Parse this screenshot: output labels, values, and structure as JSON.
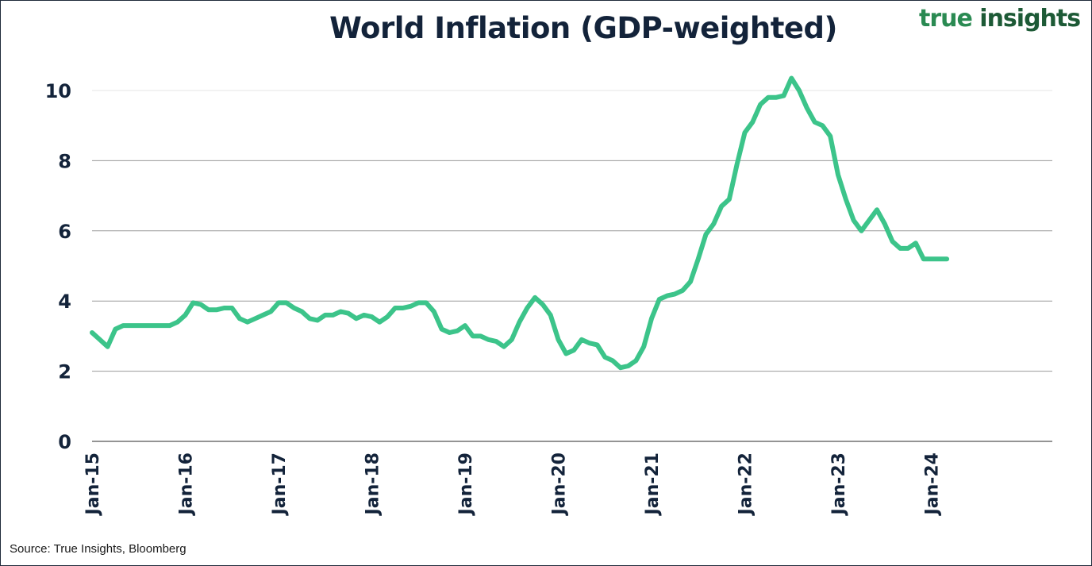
{
  "logo": {
    "part1": "true",
    "part2": " insights"
  },
  "source": "Source: True Insights, Bloomberg",
  "chart_data": {
    "type": "line",
    "title": "World Inflation (GDP-weighted)",
    "xlabel": "",
    "ylabel": "",
    "ylim": [
      0,
      10.5
    ],
    "yticks": [
      0,
      2,
      4,
      6,
      8,
      10
    ],
    "x_tick_labels": [
      "Jan-15",
      "Jan-16",
      "Jan-17",
      "Jan-18",
      "Jan-19",
      "Jan-20",
      "Jan-21",
      "Jan-22",
      "Jan-23",
      "Jan-24"
    ],
    "grid": "horizontal",
    "line_color": "#3cc48a",
    "series": [
      {
        "x": [
          "2015-01",
          "2015-02",
          "2015-03",
          "2015-04",
          "2015-05",
          "2015-06",
          "2015-07",
          "2015-08",
          "2015-09",
          "2015-10",
          "2015-11",
          "2015-12",
          "2016-01",
          "2016-02",
          "2016-03",
          "2016-04",
          "2016-05",
          "2016-06",
          "2016-07",
          "2016-08",
          "2016-09",
          "2016-10",
          "2016-11",
          "2016-12",
          "2017-01",
          "2017-02",
          "2017-03",
          "2017-04",
          "2017-05",
          "2017-06",
          "2017-07",
          "2017-08",
          "2017-09",
          "2017-10",
          "2017-11",
          "2017-12",
          "2018-01",
          "2018-02",
          "2018-03",
          "2018-04",
          "2018-05",
          "2018-06",
          "2018-07",
          "2018-08",
          "2018-09",
          "2018-10",
          "2018-11",
          "2018-12",
          "2019-01",
          "2019-02",
          "2019-03",
          "2019-04",
          "2019-05",
          "2019-06",
          "2019-07",
          "2019-08",
          "2019-09",
          "2019-10",
          "2019-11",
          "2019-12",
          "2020-01",
          "2020-02",
          "2020-03",
          "2020-04",
          "2020-05",
          "2020-06",
          "2020-07",
          "2020-08",
          "2020-09",
          "2020-10",
          "2020-11",
          "2020-12",
          "2021-01",
          "2021-02",
          "2021-03",
          "2021-04",
          "2021-05",
          "2021-06",
          "2021-07",
          "2021-08",
          "2021-09",
          "2021-10",
          "2021-11",
          "2021-12",
          "2022-01",
          "2022-02",
          "2022-03",
          "2022-04",
          "2022-05",
          "2022-06",
          "2022-07",
          "2022-08",
          "2022-09",
          "2022-10",
          "2022-11",
          "2022-12",
          "2023-01",
          "2023-02",
          "2023-03",
          "2023-04",
          "2023-05",
          "2023-06",
          "2023-07",
          "2023-08",
          "2023-09",
          "2023-10",
          "2023-11",
          "2023-12",
          "2024-01",
          "2024-02",
          "2024-03"
        ],
        "values": [
          3.1,
          2.9,
          2.7,
          3.2,
          3.3,
          3.3,
          3.3,
          3.3,
          3.3,
          3.3,
          3.3,
          3.4,
          3.6,
          3.95,
          3.9,
          3.75,
          3.75,
          3.8,
          3.8,
          3.5,
          3.4,
          3.5,
          3.6,
          3.7,
          3.95,
          3.95,
          3.8,
          3.7,
          3.5,
          3.45,
          3.6,
          3.6,
          3.7,
          3.65,
          3.5,
          3.6,
          3.55,
          3.4,
          3.55,
          3.8,
          3.8,
          3.85,
          3.95,
          3.95,
          3.7,
          3.2,
          3.1,
          3.15,
          3.3,
          3.0,
          3.0,
          2.9,
          2.85,
          2.7,
          2.9,
          3.4,
          3.8,
          4.1,
          3.9,
          3.6,
          2.9,
          2.5,
          2.6,
          2.9,
          2.8,
          2.75,
          2.4,
          2.3,
          2.1,
          2.15,
          2.3,
          2.7,
          3.5,
          4.05,
          4.15,
          4.2,
          4.3,
          4.55,
          5.2,
          5.9,
          6.2,
          6.7,
          6.9,
          7.9,
          8.8,
          9.1,
          9.6,
          9.8,
          9.8,
          9.85,
          10.35,
          10.0,
          9.5,
          9.1,
          9.0,
          8.7,
          7.6,
          6.9,
          6.3,
          6.0,
          6.3,
          6.6,
          6.2,
          5.7,
          5.5,
          5.5,
          5.65,
          5.2,
          5.2,
          5.2,
          5.2
        ]
      }
    ]
  }
}
